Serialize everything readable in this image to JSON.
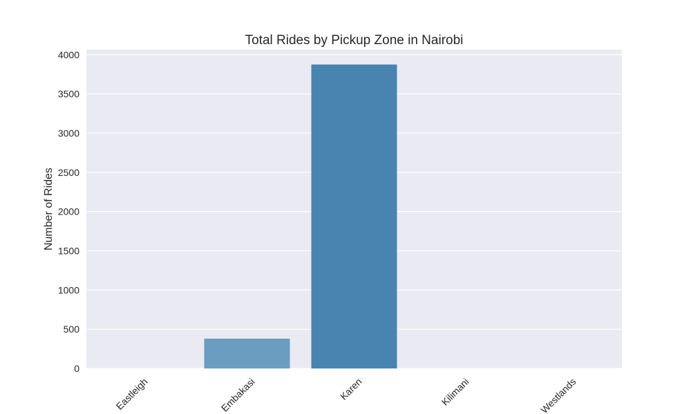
{
  "chart_data": {
    "type": "bar",
    "title": "Total Rides by Pickup Zone in Nairobi",
    "xlabel": "",
    "ylabel": "Number of Rides",
    "categories": [
      "Eastleigh",
      "Embakasi",
      "Karen",
      "Kilimani",
      "Westlands"
    ],
    "values": [
      0,
      380,
      3875,
      0,
      0
    ],
    "ylim": [
      0,
      4000
    ],
    "yticks": [
      0,
      500,
      1000,
      1500,
      2000,
      2500,
      3000,
      3500,
      4000
    ],
    "grid": true,
    "legend": "none",
    "colors": {
      "background": "#eaeaf2",
      "grid": "#ffffff",
      "bars": [
        "#c6dbef",
        "#6b9dc0",
        "#4984b1",
        "#3f78a8",
        "#2e6a9e"
      ]
    }
  }
}
